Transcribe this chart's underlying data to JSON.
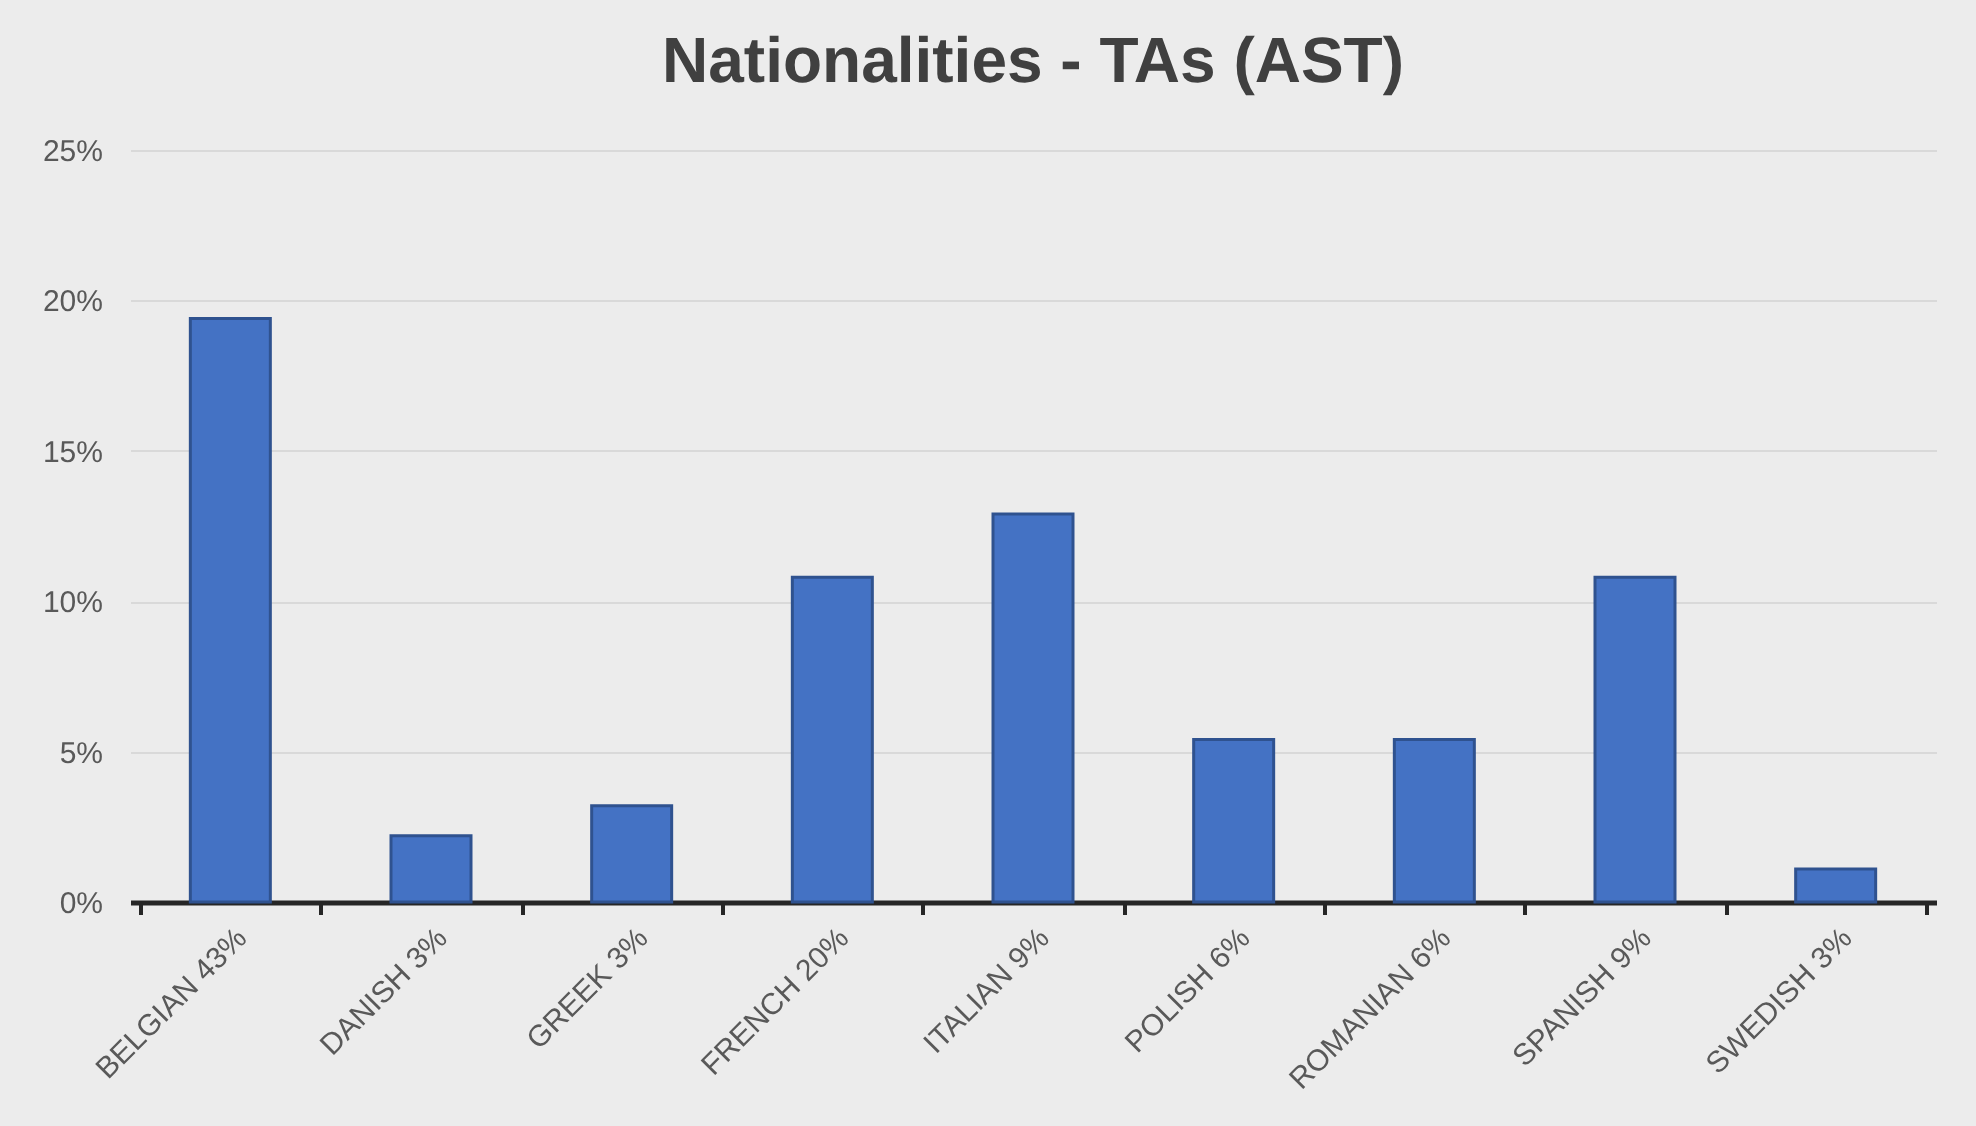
{
  "chart_data": {
    "type": "bar",
    "title": "Nationalities - TAs (AST)",
    "categories": [
      "BELGIAN 43%",
      "DANISH 3%",
      "GREEK 3%",
      "FRENCH 20%",
      "ITALIAN 9%",
      "POLISH 6%",
      "ROMANIAN 6%",
      "SPANISH 9%",
      "SWEDISH 3%"
    ],
    "values": [
      19.4,
      2.2,
      3.2,
      10.8,
      12.9,
      5.4,
      5.4,
      10.8,
      1.1
    ],
    "color": "#4472c4",
    "ylim": [
      0,
      25
    ],
    "yticks": [
      {
        "value": 0,
        "label": "0%"
      },
      {
        "value": 5,
        "label": "5%"
      },
      {
        "value": 10,
        "label": "10%"
      },
      {
        "value": 15,
        "label": "15%"
      },
      {
        "value": 20,
        "label": "20%"
      },
      {
        "value": 25,
        "label": "25%"
      }
    ],
    "grid": "y"
  }
}
